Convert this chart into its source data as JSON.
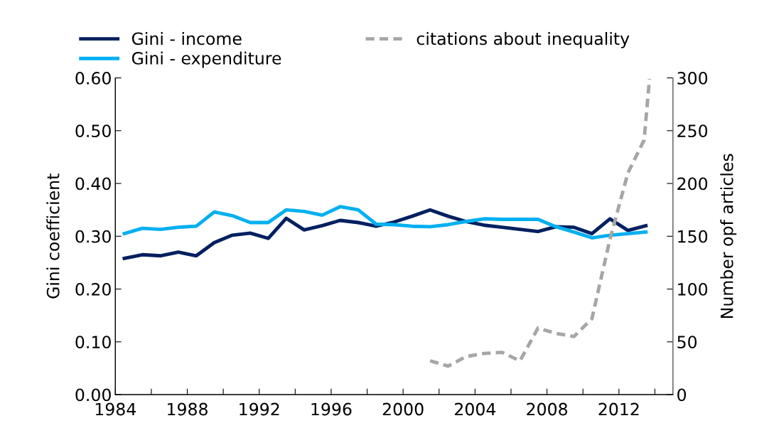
{
  "chart_data": {
    "type": "line",
    "ylabel": "Gini coefficient",
    "y2label": "Number opf articles",
    "x": [
      1984,
      1985,
      1986,
      1987,
      1988,
      1989,
      1990,
      1991,
      1992,
      1993,
      1994,
      1995,
      1996,
      1997,
      1998,
      1999,
      2000,
      2001,
      2002,
      2003,
      2004,
      2005,
      2006,
      2007,
      2008,
      2009,
      2010,
      2011,
      2012,
      2013
    ],
    "series": [
      {
        "name": "Gini - income",
        "color": "#002060",
        "values": [
          0.258,
          0.265,
          0.263,
          0.27,
          0.263,
          0.288,
          0.302,
          0.306,
          0.296,
          0.334,
          0.312,
          0.32,
          0.33,
          0.326,
          0.319,
          0.327,
          0.338,
          0.35,
          0.338,
          0.328,
          0.321,
          0.317,
          0.313,
          0.309,
          0.318,
          0.317,
          0.305,
          0.333,
          0.311,
          0.32
        ]
      },
      {
        "name": "Gini - expenditure",
        "color": "#00b0f0",
        "values": [
          0.305,
          0.315,
          0.313,
          0.317,
          0.319,
          0.346,
          0.339,
          0.326,
          0.326,
          0.35,
          0.347,
          0.34,
          0.356,
          0.35,
          0.323,
          0.322,
          0.319,
          0.318,
          0.322,
          0.328,
          0.333,
          0.332,
          0.332,
          0.332,
          0.318,
          0.308,
          0.297,
          0.302,
          0.305,
          0.308
        ]
      },
      {
        "name": "citations about inequality",
        "color": "#a6a6a6",
        "axis": "y2",
        "line_style": "dashed",
        "x": [
          2001,
          2002,
          2003,
          2004,
          2005,
          2006,
          2007,
          2008,
          2009,
          2010,
          2011,
          2012,
          2012.9,
          2013.2
        ],
        "values": [
          32,
          27,
          36,
          39,
          40,
          32,
          63,
          58,
          55,
          72,
          147,
          210,
          241,
          299
        ]
      }
    ],
    "xlim": [
      1983.5,
      2014.5
    ],
    "xticks": [
      {
        "value": 1983.5,
        "label": "1984"
      },
      {
        "value": 1985.5,
        "label": null
      },
      {
        "value": 1987.5,
        "label": "1988"
      },
      {
        "value": 1989.5,
        "label": null
      },
      {
        "value": 1991.5,
        "label": "1992"
      },
      {
        "value": 1993.5,
        "label": null
      },
      {
        "value": 1995.5,
        "label": "1996"
      },
      {
        "value": 1997.5,
        "label": null
      },
      {
        "value": 1999.5,
        "label": "2000"
      },
      {
        "value": 2001.5,
        "label": null
      },
      {
        "value": 2003.5,
        "label": "2004"
      },
      {
        "value": 2005.5,
        "label": null
      },
      {
        "value": 2007.5,
        "label": "2008"
      },
      {
        "value": 2009.5,
        "label": null
      },
      {
        "value": 2011.5,
        "label": "2012"
      },
      {
        "value": 2013.5,
        "label": null
      }
    ],
    "ylim": [
      0,
      0.6
    ],
    "yticks": [
      {
        "value": 0,
        "label": "0.00"
      },
      {
        "value": 0.1,
        "label": "0.10"
      },
      {
        "value": 0.2,
        "label": "0.20"
      },
      {
        "value": 0.3,
        "label": "0.30"
      },
      {
        "value": 0.4,
        "label": "0.40"
      },
      {
        "value": 0.5,
        "label": "0.50"
      },
      {
        "value": 0.6,
        "label": "0.60"
      }
    ],
    "y2lim": [
      0,
      300
    ],
    "y2ticks": [
      0,
      50,
      100,
      150,
      200,
      250,
      300
    ],
    "grid": false,
    "legend": "top",
    "line_style": "solid",
    "marker": "none"
  }
}
